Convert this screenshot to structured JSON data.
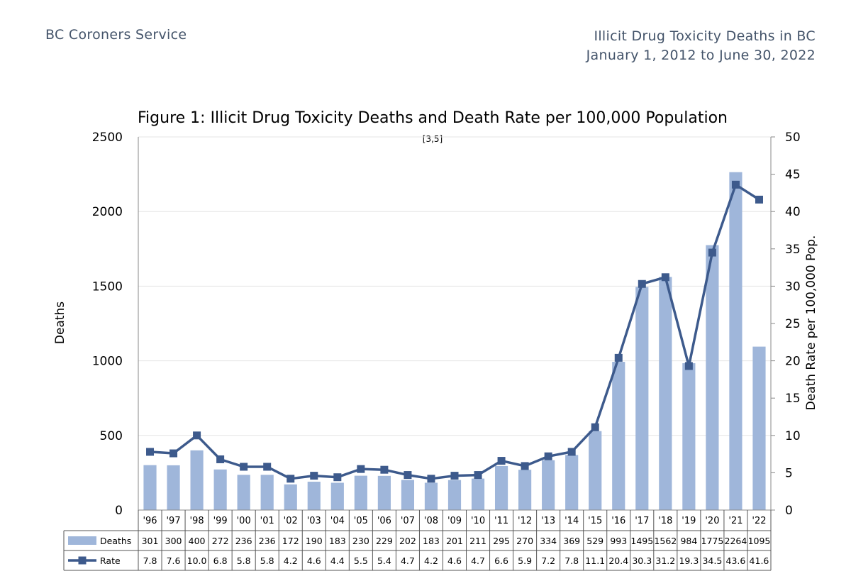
{
  "header": {
    "left": "BC Coroners Service",
    "right_line1": "Illicit Drug Toxicity Deaths in BC",
    "right_line2": "January 1, 2012 to June 30, 2022"
  },
  "chart_data": {
    "type": "bar",
    "title": "Figure 1: Illicit Drug Toxicity Deaths and Death Rate per 100,000 Population",
    "note": "[3,5]",
    "ylabel": "Deaths",
    "y2label": "Death Rate per 100,000 Pop.",
    "ylim": [
      0,
      2500
    ],
    "y2lim": [
      0,
      50
    ],
    "yticks": [
      "0",
      "500",
      "1000",
      "1500",
      "2000",
      "2500"
    ],
    "y2ticks": [
      "0",
      "5",
      "10",
      "15",
      "20",
      "25",
      "30",
      "35",
      "40",
      "45",
      "50"
    ],
    "categories": [
      "'96",
      "'97",
      "'98",
      "'99",
      "'00",
      "'01",
      "'02",
      "'03",
      "'04",
      "'05",
      "'06",
      "'07",
      "'08",
      "'09",
      "'10",
      "'11",
      "'12",
      "'13",
      "'14",
      "'15",
      "'16",
      "'17",
      "'18",
      "'19",
      "'20",
      "'21",
      "'22"
    ],
    "series": [
      {
        "name": "Deaths",
        "kind": "bar",
        "axis": "left",
        "color": "#9fb6da",
        "values": [
          301,
          300,
          400,
          272,
          236,
          236,
          172,
          190,
          183,
          230,
          229,
          202,
          183,
          201,
          211,
          295,
          270,
          334,
          369,
          529,
          993,
          1495,
          1562,
          984,
          1775,
          2264,
          1095
        ]
      },
      {
        "name": "Rate",
        "kind": "line",
        "axis": "right",
        "color": "#3d5a8c",
        "values": [
          7.8,
          7.6,
          10.0,
          6.8,
          5.8,
          5.8,
          4.2,
          4.6,
          4.4,
          5.5,
          5.4,
          4.7,
          4.2,
          4.6,
          4.7,
          6.6,
          5.9,
          7.2,
          7.8,
          11.1,
          20.4,
          30.3,
          31.2,
          19.3,
          34.5,
          43.6,
          41.6
        ]
      }
    ],
    "grid": true,
    "legend": "data-table-below"
  }
}
